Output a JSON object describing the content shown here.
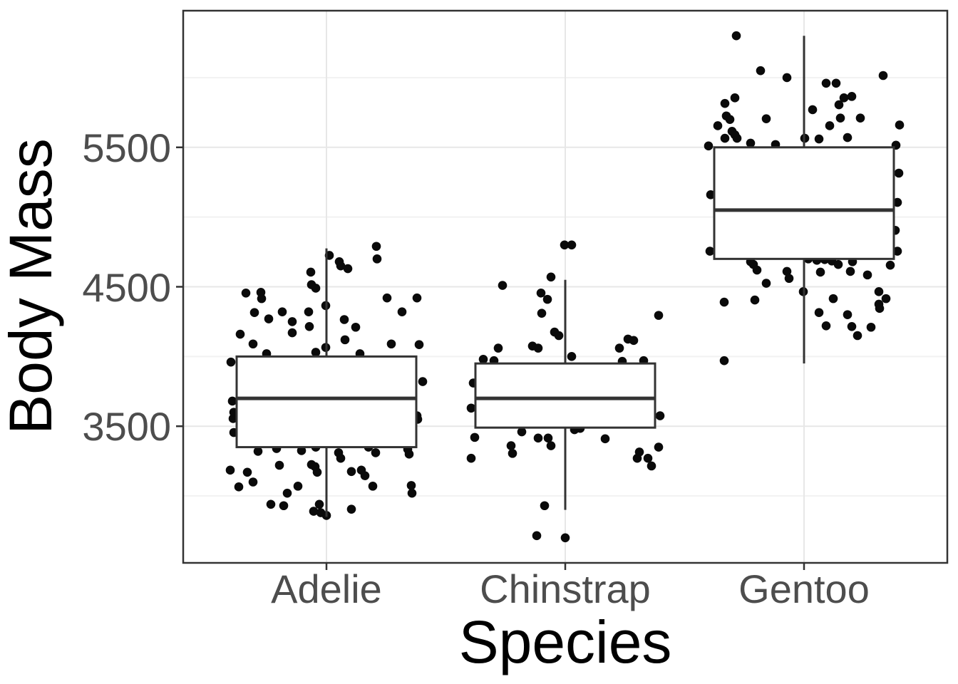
{
  "chart_data": {
    "type": "boxplot",
    "subtype": "boxplot_with_jittered_points",
    "title": "",
    "xlabel": "Species",
    "ylabel": "Body Mass",
    "categories": [
      "Adelie",
      "Chinstrap",
      "Gentoo"
    ],
    "y_tick_labels": [
      "5500",
      "4500",
      "3500"
    ],
    "y_major_ticks": [
      5500,
      4500,
      3500
    ],
    "y_minor_gridlines": [
      3000,
      4000,
      5000,
      6000
    ],
    "ylim": [
      2520,
      6480
    ],
    "grid": true,
    "legend_position": "none",
    "boxes": [
      {
        "species": "Adelie",
        "lower_whisker": 2850,
        "q1": 3350,
        "median": 3700,
        "q3": 4000,
        "upper_whisker": 4775,
        "outliers": []
      },
      {
        "species": "Chinstrap",
        "lower_whisker": 2900,
        "q1": 3490,
        "median": 3700,
        "q3": 3950,
        "upper_whisker": 4550,
        "outliers": [
          2700,
          4800,
          4800
        ]
      },
      {
        "species": "Gentoo",
        "lower_whisker": 3950,
        "q1": 4700,
        "median": 5050,
        "q3": 5500,
        "upper_whisker": 6300,
        "outliers": []
      }
    ],
    "outliers_drawn_as_box_symbols": false,
    "points_note": "raw data shown as horizontally jittered black dots drawn beneath white-filled boxes; pairs are [x_offset_px_from_category_center, body_mass_g]",
    "jitter_points": {
      "Adelie": [
        [
          4,
          4725
        ],
        [
          70,
          4790
        ],
        [
          71,
          4700
        ],
        [
          18,
          4680
        ],
        [
          20,
          4650
        ],
        [
          30,
          4630
        ],
        [
          -22,
          4605
        ],
        [
          -21,
          4515
        ],
        [
          -15,
          4490
        ],
        [
          -113,
          4455
        ],
        [
          -92,
          4460
        ],
        [
          -91,
          4415
        ],
        [
          85,
          4420
        ],
        [
          127,
          4420
        ],
        [
          106,
          4320
        ],
        [
          -101,
          4315
        ],
        [
          -81,
          4270
        ],
        [
          -62,
          4320
        ],
        [
          -25,
          4320
        ],
        [
          -1,
          4365
        ],
        [
          -48,
          4250
        ],
        [
          -24,
          4215
        ],
        [
          25,
          4265
        ],
        [
          41,
          4210
        ],
        [
          -48,
          4170
        ],
        [
          -121,
          4160
        ],
        [
          -103,
          4090
        ],
        [
          26,
          4120
        ],
        [
          91,
          4090
        ],
        [
          130,
          4085
        ],
        [
          -1,
          4065
        ],
        [
          -84,
          4020
        ],
        [
          -15,
          4030
        ],
        [
          47,
          4020
        ],
        [
          -134,
          3960
        ],
        [
          135,
          3820
        ],
        [
          -132,
          3680
        ],
        [
          -130,
          3600
        ],
        [
          -131,
          3555
        ],
        [
          -130,
          3455
        ],
        [
          127,
          3575
        ],
        [
          128,
          3550
        ],
        [
          -96,
          3320
        ],
        [
          -70,
          3340
        ],
        [
          -35,
          3325
        ],
        [
          -23,
          3375
        ],
        [
          -15,
          3350
        ],
        [
          17,
          3310
        ],
        [
          20,
          3270
        ],
        [
          59,
          3350
        ],
        [
          69,
          3310
        ],
        [
          114,
          3335
        ],
        [
          116,
          3300
        ],
        [
          -135,
          3185
        ],
        [
          -111,
          3170
        ],
        [
          -66,
          3220
        ],
        [
          -21,
          3225
        ],
        [
          -16,
          3210
        ],
        [
          -13,
          3170
        ],
        [
          35,
          3175
        ],
        [
          49,
          3185
        ],
        [
          54,
          3145
        ],
        [
          -123,
          3065
        ],
        [
          -103,
          3100
        ],
        [
          -40,
          3070
        ],
        [
          -55,
          3020
        ],
        [
          65,
          3070
        ],
        [
          119,
          3075
        ],
        [
          120,
          3020
        ],
        [
          -78,
          2940
        ],
        [
          -60,
          2930
        ],
        [
          -10,
          2940
        ],
        [
          -8,
          2880
        ],
        [
          -18,
          2890
        ],
        [
          0,
          2860
        ],
        [
          35,
          2905
        ]
      ],
      "Chinstrap": [
        [
          -1,
          4800
        ],
        [
          9,
          4800
        ],
        [
          -20,
          4570
        ],
        [
          -88,
          4510
        ],
        [
          -34,
          4455
        ],
        [
          -25,
          4410
        ],
        [
          -33,
          4310
        ],
        [
          131,
          4295
        ],
        [
          -15,
          4175
        ],
        [
          -9,
          4150
        ],
        [
          -46,
          4075
        ],
        [
          -38,
          4060
        ],
        [
          -94,
          4060
        ],
        [
          -115,
          3980
        ],
        [
          -100,
          3970
        ],
        [
          9,
          4000
        ],
        [
          76,
          4060
        ],
        [
          88,
          4125
        ],
        [
          96,
          4115
        ],
        [
          110,
          3970
        ],
        [
          80,
          3965
        ],
        [
          -129,
          3810
        ],
        [
          -132,
          3630
        ],
        [
          133,
          3575
        ],
        [
          -127,
          3420
        ],
        [
          -61,
          3460
        ],
        [
          13,
          3475
        ],
        [
          21,
          3485
        ],
        [
          -38,
          3415
        ],
        [
          -24,
          3415
        ],
        [
          -20,
          3360
        ],
        [
          56,
          3410
        ],
        [
          -76,
          3360
        ],
        [
          -74,
          3305
        ],
        [
          -132,
          3270
        ],
        [
          104,
          3315
        ],
        [
          101,
          3270
        ],
        [
          116,
          3270
        ],
        [
          121,
          3215
        ],
        [
          131,
          3350
        ],
        [
          -29,
          2930
        ],
        [
          -40,
          2715
        ],
        [
          0,
          2700
        ]
      ],
      "Gentoo": [
        [
          -95,
          6300
        ],
        [
          -61,
          6050
        ],
        [
          -24,
          6000
        ],
        [
          111,
          6015
        ],
        [
          31,
          5960
        ],
        [
          45,
          5960
        ],
        [
          56,
          5855
        ],
        [
          67,
          5865
        ],
        [
          49,
          5805
        ],
        [
          -111,
          5815
        ],
        [
          -97,
          5855
        ],
        [
          12,
          5770
        ],
        [
          51,
          5710
        ],
        [
          79,
          5710
        ],
        [
          -109,
          5725
        ],
        [
          -104,
          5700
        ],
        [
          -121,
          5655
        ],
        [
          -53,
          5705
        ],
        [
          36,
          5655
        ],
        [
          134,
          5660
        ],
        [
          -101,
          5615
        ],
        [
          -97,
          5590
        ],
        [
          -94,
          5565
        ],
        [
          -111,
          5565
        ],
        [
          1,
          5565
        ],
        [
          21,
          5560
        ],
        [
          -134,
          5510
        ],
        [
          -75,
          5530
        ],
        [
          -40,
          5520
        ],
        [
          129,
          5515
        ],
        [
          61,
          5570
        ],
        [
          133,
          5315
        ],
        [
          -131,
          5160
        ],
        [
          131,
          5105
        ],
        [
          128,
          4905
        ],
        [
          -132,
          4755
        ],
        [
          131,
          4755
        ],
        [
          -75,
          4680
        ],
        [
          -71,
          4660
        ],
        [
          -66,
          4620
        ],
        [
          6,
          4700
        ],
        [
          18,
          4690
        ],
        [
          29,
          4695
        ],
        [
          39,
          4685
        ],
        [
          48,
          4660
        ],
        [
          68,
          4680
        ],
        [
          23,
          4605
        ],
        [
          -24,
          4610
        ],
        [
          -21,
          4560
        ],
        [
          65,
          4610
        ],
        [
          89,
          4585
        ],
        [
          121,
          4655
        ],
        [
          -53,
          4525
        ],
        [
          -1,
          4465
        ],
        [
          105,
          4465
        ],
        [
          115,
          4415
        ],
        [
          105,
          4375
        ],
        [
          -112,
          4390
        ],
        [
          -69,
          4405
        ],
        [
          41,
          4415
        ],
        [
          21,
          4315
        ],
        [
          61,
          4300
        ],
        [
          106,
          4345
        ],
        [
          31,
          4220
        ],
        [
          67,
          4215
        ],
        [
          75,
          4150
        ],
        [
          94,
          4210
        ],
        [
          -112,
          3970
        ]
      ]
    },
    "colors": {
      "point": "#0a0a0a",
      "box_stroke": "#333333",
      "box_fill": "#ffffff",
      "median_stroke": "#333333",
      "grid_major": "#e7e7e7",
      "grid_minor": "#f2f2f2",
      "axis_text": "#4d4d4d",
      "axis_title": "#000000",
      "panel_border": "#333333",
      "background": "#ffffff"
    }
  }
}
